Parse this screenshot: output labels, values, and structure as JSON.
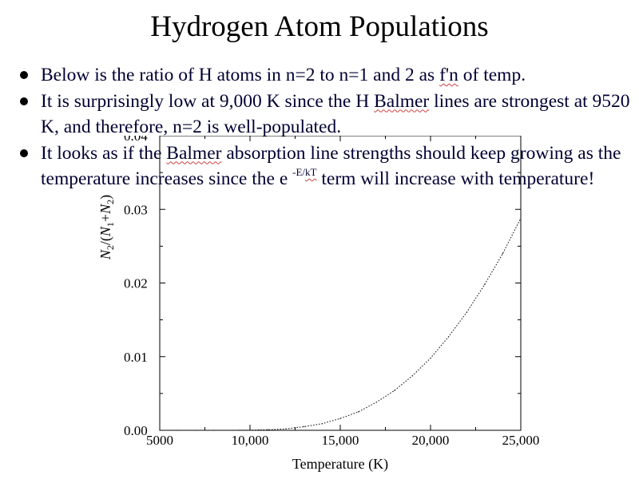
{
  "slide": {
    "title": "Hydrogen Atom Populations",
    "bullets": [
      {
        "parts": [
          {
            "text": "Below is the ratio of H atoms in n=2 to n=1 and 2 as "
          },
          {
            "text": "f'n",
            "squiggle": true
          },
          {
            "text": " of temp."
          }
        ]
      },
      {
        "parts": [
          {
            "text": "It is surprisingly low at 9,000 K since the H "
          },
          {
            "text": "Balmer",
            "squiggle": true
          },
          {
            "text": " lines are strongest at 9520 K, and therefore, n=2 is well-populated."
          }
        ]
      },
      {
        "parts": [
          {
            "text": "It looks as if the "
          },
          {
            "text": "Balmer",
            "squiggle": true
          },
          {
            "text": " absorption line strengths should keep growing as the temperature increases since the e "
          },
          {
            "text": "-E/",
            "sup": true
          },
          {
            "text": "kT",
            "sup": true,
            "squiggle": true
          },
          {
            "text": " term will increase with temperature!"
          }
        ]
      }
    ]
  },
  "chart_data": {
    "type": "line",
    "xlabel": "Temperature (K)",
    "ylabel_parts": [
      "N",
      "2",
      "/(",
      "N",
      "1",
      "+",
      "N",
      "2",
      ")"
    ],
    "xlim": [
      5000,
      25000
    ],
    "ylim": [
      0,
      0.04
    ],
    "x_ticks": [
      5000,
      10000,
      15000,
      20000,
      25000
    ],
    "x_tick_labels": [
      "5000",
      "10,000",
      "15,000",
      "20,000",
      "25,000"
    ],
    "y_ticks": [
      0,
      0.01,
      0.02,
      0.03,
      0.04
    ],
    "y_tick_labels": [
      "0.00",
      "0.01",
      "0.02",
      "0.03",
      "0.04"
    ],
    "grid": false,
    "series": [
      {
        "x": [
          5000,
          6000,
          7000,
          8000,
          9000,
          10000,
          10500,
          11000,
          12000,
          13000,
          14000,
          15000,
          16000,
          17000,
          18000,
          19000,
          20000,
          21000,
          22000,
          23000,
          24000,
          25000
        ],
        "y": [
          0.0,
          0.0,
          0.0,
          0.0,
          0.0,
          2e-05,
          4e-05,
          7e-05,
          0.0002,
          0.0005,
          0.0009,
          0.0016,
          0.0025,
          0.0038,
          0.0054,
          0.0074,
          0.0098,
          0.0127,
          0.016,
          0.0198,
          0.024,
          0.0288
        ]
      }
    ]
  }
}
